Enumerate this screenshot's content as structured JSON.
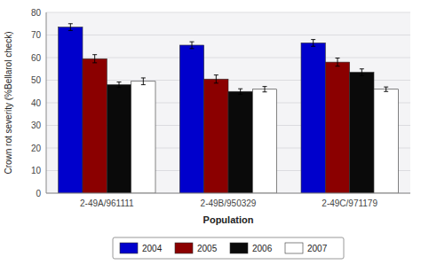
{
  "chart_data": {
    "type": "bar",
    "xlabel": "Population",
    "ylabel": "Crown rot severity (%Bellarol check)",
    "categories": [
      "2-49A/961111",
      "2-49B/950329",
      "2-49C/971179"
    ],
    "series": [
      {
        "name": "2004",
        "color": "#0000CC",
        "values": [
          73.5,
          65.5,
          66.5
        ],
        "errors": [
          1.5,
          1.5,
          1.5
        ]
      },
      {
        "name": "2005",
        "color": "#8B0000",
        "values": [
          59.5,
          50.5,
          58.0
        ],
        "errors": [
          1.8,
          1.8,
          1.8
        ]
      },
      {
        "name": "2006",
        "color": "#0A0A0A",
        "values": [
          48.0,
          45.0,
          53.5
        ],
        "errors": [
          1.2,
          1.2,
          1.5
        ]
      },
      {
        "name": "2007",
        "color": "#FFFFFF",
        "values": [
          49.5,
          46.0,
          46.0
        ],
        "errors": [
          1.5,
          1.2,
          1.0
        ]
      }
    ],
    "ylim": [
      0,
      80
    ],
    "yticks": [
      0,
      10,
      20,
      30,
      40,
      50,
      60,
      70,
      80
    ],
    "grid": true,
    "legend": "bottom"
  }
}
